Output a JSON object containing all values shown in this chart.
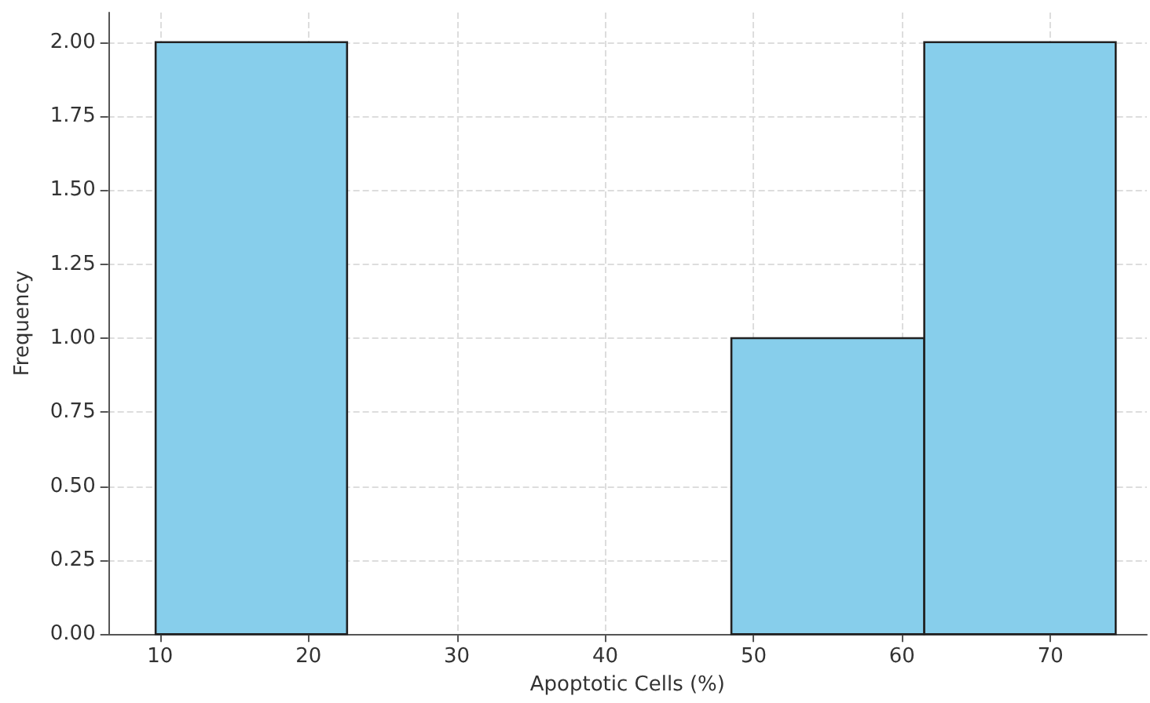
{
  "chart_data": {
    "type": "histogram",
    "xlabel": "Apoptotic Cells (%)",
    "ylabel": "Frequency",
    "bins": [
      9.7,
      22.6,
      48.5,
      61.5,
      74.4
    ],
    "values": [
      2,
      0,
      1,
      2
    ],
    "color": "#87ceeb",
    "xlim": [
      6.5,
      76.5
    ],
    "xticks": [
      10,
      20,
      30,
      40,
      50,
      60,
      70
    ],
    "ylim": [
      0,
      2.1
    ],
    "yticks": [
      {
        "value": 0,
        "label": "0.00"
      },
      {
        "value": 0.25,
        "label": "0.25"
      },
      {
        "value": 0.5,
        "label": "0.50"
      },
      {
        "value": 0.75,
        "label": "0.75"
      },
      {
        "value": 1,
        "label": "1.00"
      },
      {
        "value": 1.25,
        "label": "1.25"
      },
      {
        "value": 1.5,
        "label": "1.50"
      },
      {
        "value": 1.75,
        "label": "1.75"
      },
      {
        "value": 2,
        "label": "2.00"
      }
    ],
    "grid": true
  }
}
